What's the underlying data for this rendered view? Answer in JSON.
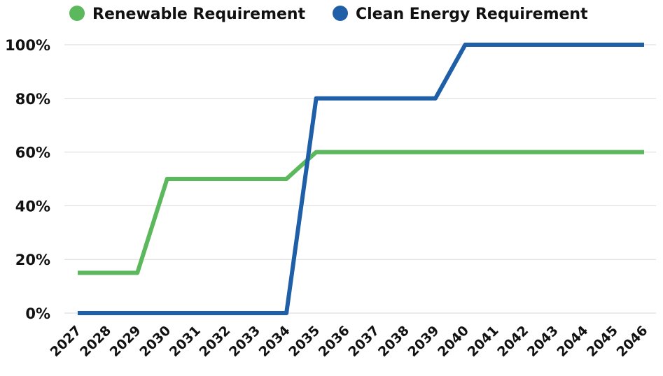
{
  "chart_data": {
    "type": "line",
    "title": "",
    "xlabel": "",
    "ylabel": "",
    "categories": [
      "2027",
      "2028",
      "2029",
      "2030",
      "2031",
      "2032",
      "2033",
      "2034",
      "2035",
      "2036",
      "2037",
      "2038",
      "2039",
      "2040",
      "2041",
      "2042",
      "2043",
      "2044",
      "2045",
      "2046"
    ],
    "y_ticks": [
      "0%",
      "20%",
      "40%",
      "60%",
      "80%",
      "100%"
    ],
    "ylim": [
      0,
      100
    ],
    "grid": true,
    "legend_position": "top",
    "series": [
      {
        "name": "Renewable Requirement",
        "color": "#5cb85c",
        "values": [
          15,
          15,
          15,
          50,
          50,
          50,
          50,
          50,
          60,
          60,
          60,
          60,
          60,
          60,
          60,
          60,
          60,
          60,
          60,
          60
        ]
      },
      {
        "name": "Clean Energy Requirement",
        "color": "#1f5fa8",
        "values": [
          0,
          0,
          0,
          0,
          0,
          0,
          0,
          0,
          80,
          80,
          80,
          80,
          80,
          100,
          100,
          100,
          100,
          100,
          100,
          100
        ]
      }
    ]
  }
}
